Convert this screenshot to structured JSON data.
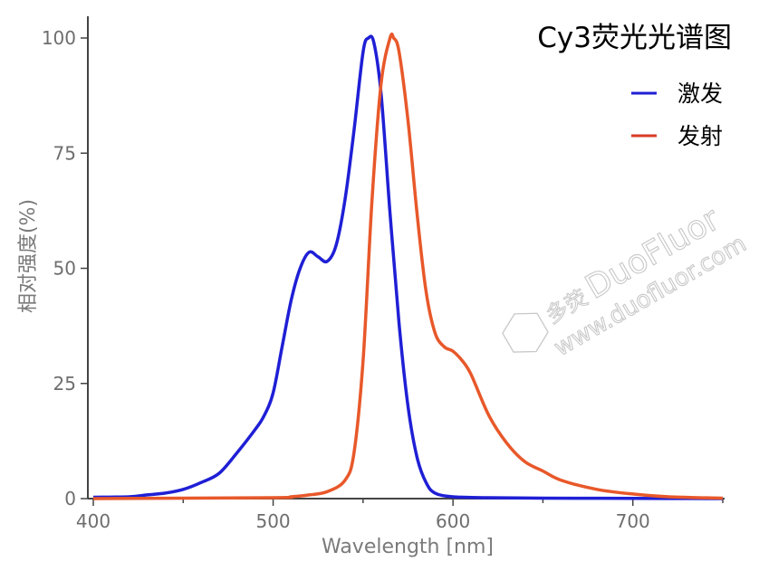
{
  "chart_data": {
    "type": "line",
    "title": "Cy3荧光光谱图",
    "xlabel": "Wavelength [nm]",
    "ylabel": "相对强度(%)",
    "xlim": [
      400,
      750
    ],
    "ylim": [
      0,
      105
    ],
    "xticks": [
      400,
      500,
      600,
      700
    ],
    "yticks": [
      0,
      25,
      50,
      75,
      100
    ],
    "legend_position": "top-right",
    "grid": false,
    "series": [
      {
        "name": "激发",
        "color": "#1f1fd6",
        "points": [
          [
            400,
            0.3
          ],
          [
            420,
            0.4
          ],
          [
            430,
            0.8
          ],
          [
            440,
            1.2
          ],
          [
            450,
            2.0
          ],
          [
            460,
            3.5
          ],
          [
            470,
            5.5
          ],
          [
            480,
            10
          ],
          [
            490,
            15
          ],
          [
            495,
            18
          ],
          [
            500,
            23
          ],
          [
            505,
            33
          ],
          [
            510,
            43
          ],
          [
            515,
            50
          ],
          [
            520,
            53.5
          ],
          [
            525,
            52.5
          ],
          [
            530,
            51.5
          ],
          [
            535,
            55
          ],
          [
            540,
            65
          ],
          [
            545,
            80
          ],
          [
            550,
            97
          ],
          [
            553,
            100
          ],
          [
            556,
            99
          ],
          [
            560,
            88
          ],
          [
            565,
            62
          ],
          [
            570,
            38
          ],
          [
            575,
            20
          ],
          [
            580,
            9
          ],
          [
            585,
            3.5
          ],
          [
            590,
            1.2
          ],
          [
            600,
            0.4
          ],
          [
            620,
            0.2
          ],
          [
            650,
            0.1
          ],
          [
            700,
            0.05
          ],
          [
            750,
            0
          ]
        ]
      },
      {
        "name": "发射",
        "color": "#e8582a",
        "points": [
          [
            400,
            0
          ],
          [
            500,
            0.2
          ],
          [
            510,
            0.4
          ],
          [
            520,
            0.8
          ],
          [
            530,
            1.5
          ],
          [
            540,
            4
          ],
          [
            545,
            10
          ],
          [
            550,
            30
          ],
          [
            555,
            65
          ],
          [
            560,
            90
          ],
          [
            565,
            100
          ],
          [
            567,
            100
          ],
          [
            570,
            97
          ],
          [
            575,
            82
          ],
          [
            580,
            62
          ],
          [
            585,
            45
          ],
          [
            590,
            36
          ],
          [
            595,
            33
          ],
          [
            600,
            32
          ],
          [
            605,
            30
          ],
          [
            610,
            27
          ],
          [
            620,
            18
          ],
          [
            630,
            12
          ],
          [
            640,
            8
          ],
          [
            650,
            6
          ],
          [
            660,
            4
          ],
          [
            680,
            2
          ],
          [
            700,
            1
          ],
          [
            720,
            0.4
          ],
          [
            750,
            0.1
          ]
        ]
      }
    ]
  },
  "watermark": {
    "logo_text": "多荧",
    "brand": "DuoFluor",
    "url": "www.duofluor.com"
  }
}
